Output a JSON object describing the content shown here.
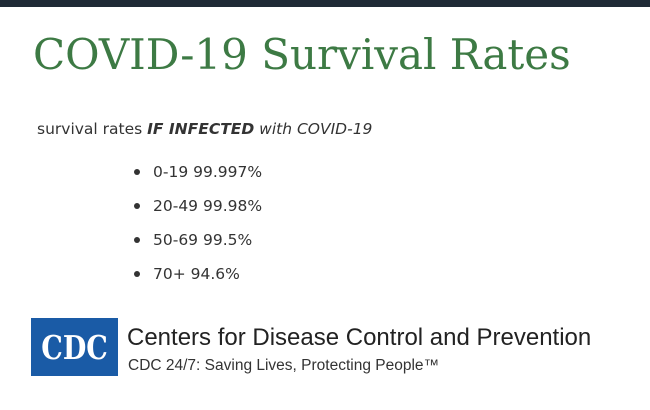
{
  "header": {
    "title": "COVID-19 Survival Rates"
  },
  "intro": {
    "prefix": "survival rates ",
    "bold_italic": "IF INFECTED",
    "italic": " with COVID-19"
  },
  "rates": [
    {
      "age_group": "0-19",
      "rate": "99.997%"
    },
    {
      "age_group": "20-49",
      "rate": "99.98%"
    },
    {
      "age_group": "50-69",
      "rate": "99.5%"
    },
    {
      "age_group": "70+",
      "rate": "94.6%"
    }
  ],
  "footer": {
    "logo_text": "CDC",
    "organization": "Centers for Disease Control and Prevention",
    "tagline": "CDC 24/7: Saving Lives, Protecting People™"
  },
  "colors": {
    "title": "#3d7a44",
    "top_bar": "#1f2a36",
    "logo_blue": "#1a5ba6"
  }
}
